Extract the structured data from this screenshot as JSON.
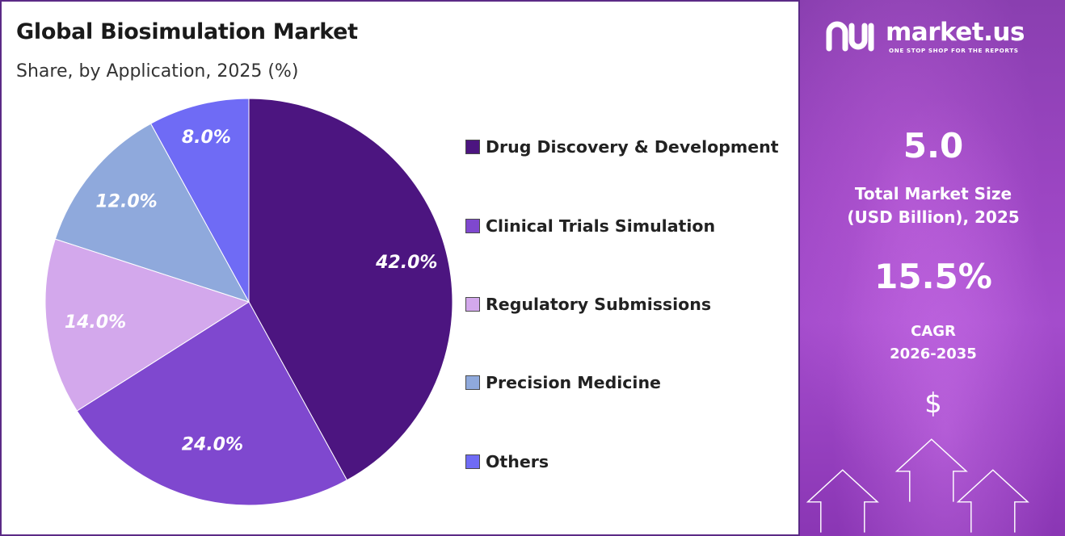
{
  "header": {
    "title": "Global Biosimulation Market",
    "subtitle": "Share, by Application, 2025 (%)"
  },
  "colors": {
    "drug_discovery": "#4c1580",
    "clinical_trials": "#7f48cf",
    "regulatory": "#d3a8ec",
    "precision_medicine": "#8fa9dc",
    "others": "#6f6bf5",
    "panel": "#9b45c2",
    "border": "#5b2a86"
  },
  "chart_data": {
    "type": "pie",
    "series": [
      {
        "name": "Drug Discovery & Development",
        "value": 42.0,
        "label": "42.0%",
        "color": "#4c1580"
      },
      {
        "name": "Clinical Trials Simulation",
        "value": 24.0,
        "label": "24.0%",
        "color": "#7f48cf"
      },
      {
        "name": "Regulatory Submissions",
        "value": 14.0,
        "label": "14.0%",
        "color": "#d3a8ec"
      },
      {
        "name": "Precision Medicine",
        "value": 12.0,
        "label": "12.0%",
        "color": "#8fa9dc"
      },
      {
        "name": "Others",
        "value": 8.0,
        "label": "8.0%",
        "color": "#6f6bf5"
      }
    ],
    "legend_position": "right",
    "start_angle": "12 o'clock",
    "direction": "clockwise"
  },
  "sidebar": {
    "brand_name": "market.us",
    "brand_tagline": "ONE STOP SHOP FOR THE REPORTS",
    "market_size_value": "5.0",
    "market_size_label_line1": "Total Market Size",
    "market_size_label_line2": "(USD Billion), 2025",
    "cagr_value": "15.5%",
    "cagr_label_line1": "CAGR",
    "cagr_label_line2": "2026-2035",
    "currency_symbol": "$"
  }
}
